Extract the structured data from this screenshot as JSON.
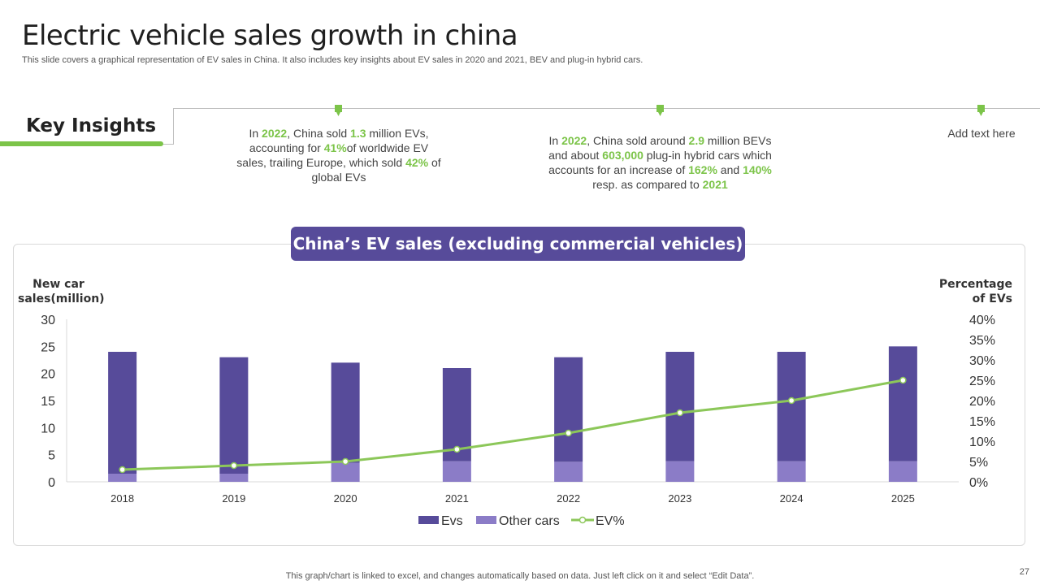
{
  "title": "Electric vehicle sales growth in china",
  "subtitle": "This slide covers a graphical representation of  EV sales in China. It also includes key insights about EV sales in 2020 and 2021, BEV and plug-in hybrid cars.",
  "key_insights": {
    "heading": "Key Insights",
    "insight1": {
      "p1": "In ",
      "y": "2022",
      "p2": ", China sold ",
      "n": "1.3",
      "p3": " million EVs, accounting for ",
      "pct": "41%",
      "p4": "of worldwide EV sales, trailing Europe, which sold ",
      "pct2": "42%",
      "p5": " of global EVs"
    },
    "insight2": {
      "p1": "In ",
      "y": "2022",
      "p2": ", China sold around ",
      "n": "2.9",
      "p3": " million BEVs and about ",
      "n2": "603,000",
      "p4": " plug-in hybrid cars which accounts for an increase of ",
      "pct": "162%",
      "p5": " and ",
      "pct2": "140%",
      "p6": " resp. as compared to ",
      "y2": "2021"
    },
    "insight3": "Add text here"
  },
  "chart_header": "China’s EV sales (excluding commercial vehicles)",
  "left_axis_title": {
    "line1": "New car",
    "line2": "sales(million)"
  },
  "right_axis_title": {
    "line1": "Percentage",
    "line2": "of EVs"
  },
  "chart_data": {
    "type": "bar",
    "title": "China’s EV sales (excluding commercial vehicles)",
    "categories": [
      "2018",
      "2019",
      "2020",
      "2021",
      "2022",
      "2023",
      "2024",
      "2025"
    ],
    "series": [
      {
        "name": "Evs",
        "values": [
          22.5,
          21.5,
          18.5,
          17.2,
          19.3,
          20.2,
          20.2,
          21.2
        ],
        "axis": "left",
        "color": "#574b9a"
      },
      {
        "name": "Other cars",
        "values": [
          1.5,
          1.5,
          3.5,
          3.8,
          3.7,
          3.8,
          3.8,
          3.8
        ],
        "axis": "left",
        "color": "#8b7cc7"
      },
      {
        "name": "EV%",
        "values": [
          3,
          4,
          5,
          8,
          12,
          17,
          20,
          25
        ],
        "axis": "right",
        "type": "line",
        "color": "#8cc759"
      }
    ],
    "stacked": true,
    "ylabel": "New car sales(million)",
    "y2label": "Percentage of EVs",
    "ylim": [
      0,
      30
    ],
    "yticks": [
      "0",
      "5",
      "10",
      "15",
      "20",
      "25",
      "30"
    ],
    "y2lim": [
      0,
      40
    ],
    "y2ticks": [
      "0%",
      "5%",
      "10%",
      "15%",
      "20%",
      "25%",
      "30%",
      "35%",
      "40%"
    ],
    "legend_position": "bottom"
  },
  "footer": "This graph/chart is linked to excel,  and changes automatically based on data. Just left click on it and select “Edit Data”.",
  "page_number": "27"
}
